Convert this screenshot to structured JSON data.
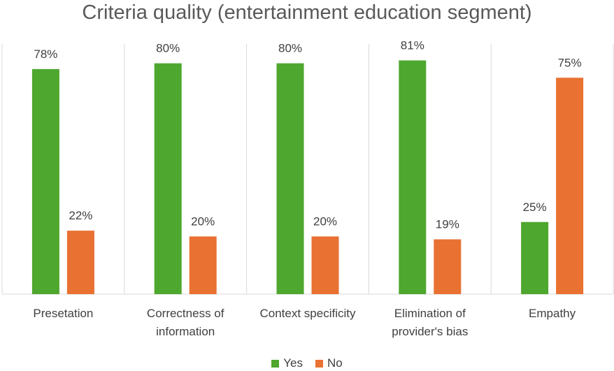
{
  "chart_data": {
    "type": "bar",
    "title": "Criteria quality (entertainment education segment)",
    "categories": [
      [
        "Presetation"
      ],
      [
        "Correctness of",
        "information"
      ],
      [
        "Context specificity"
      ],
      [
        "Elimination of",
        "provider's bias"
      ],
      [
        "Empathy"
      ]
    ],
    "series": [
      {
        "name": "Yes",
        "color": "#4ea72e",
        "values": [
          78,
          80,
          80,
          81,
          25
        ],
        "labels": [
          "78%",
          "80%",
          "80%",
          "81%",
          "25%"
        ]
      },
      {
        "name": "No",
        "color": "#e97132",
        "values": [
          22,
          20,
          20,
          19,
          75
        ],
        "labels": [
          "22%",
          "20%",
          "20%",
          "19%",
          "75%"
        ]
      }
    ],
    "ylim": [
      0,
      100
    ],
    "grid": false,
    "legend": "bottom"
  }
}
